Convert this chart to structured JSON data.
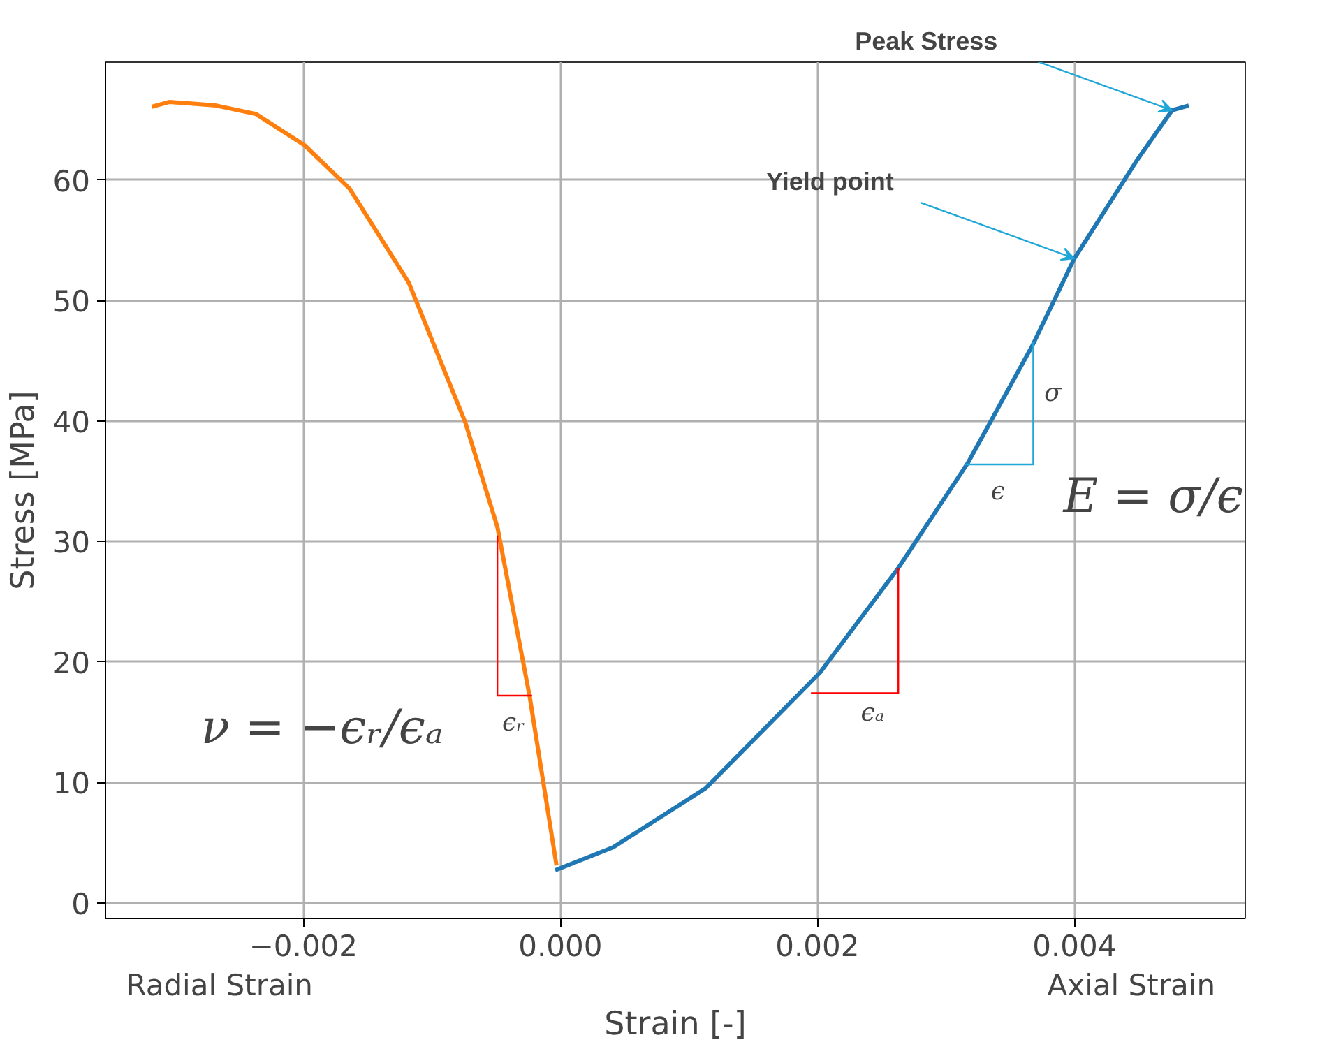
{
  "chart_data": {
    "type": "line",
    "xlabel": "Strain [-]",
    "ylabel": "Stress [MPa]",
    "xlim": [
      -0.00354,
      0.00533
    ],
    "ylim": [
      -1.3,
      69.8
    ],
    "xticks": [
      {
        "value": -0.002,
        "label": "−0.002"
      },
      {
        "value": 0,
        "label": "0.000"
      },
      {
        "value": 0.002,
        "label": "0.002"
      },
      {
        "value": 0.004,
        "label": "0.004"
      }
    ],
    "yticks": [
      0,
      10,
      20,
      30,
      40,
      50,
      60
    ],
    "grid": true,
    "marker": "none",
    "line_style": "solid",
    "series": [
      {
        "color": "#ff7f0e",
        "x": [
          -0.00318,
          -0.00304,
          -0.00268,
          -0.00237,
          -0.00199,
          -0.00164,
          -0.00118,
          -0.00074,
          -0.00049,
          -0.00024,
          -3e-05
        ],
        "values": [
          66.1,
          66.5,
          66.2,
          65.5,
          62.9,
          59.3,
          51.5,
          39.9,
          31.2,
          17.2,
          3.1
        ]
      },
      {
        "color": "#1f77b4",
        "x": [
          -4e-05,
          0.00041,
          0.00113,
          0.00202,
          0.00263,
          0.00317,
          0.00367,
          0.004,
          0.00449,
          0.00476,
          0.00489
        ],
        "values": [
          2.7,
          4.6,
          9.5,
          19.1,
          27.8,
          36.5,
          46.2,
          53.5,
          61.7,
          65.8,
          66.2
        ]
      },
      {
        "color": "#ff0000",
        "x": [
          -0.00049,
          -0.00049,
          -0.00022
        ],
        "values": [
          30.5,
          17.2,
          17.2
        ]
      },
      {
        "color": "#ff0000",
        "x": [
          0.00195,
          0.00263,
          0.00263
        ],
        "values": [
          17.4,
          17.4,
          27.8
        ]
      },
      {
        "color": "#1fa7d8",
        "x": [
          0.00315,
          0.00368,
          0.00368
        ],
        "values": [
          36.4,
          36.4,
          46.6
        ]
      }
    ],
    "annotations": [
      {
        "text": "Peak Stress",
        "x": 0.00476,
        "y": 65.8
      },
      {
        "text": "Yield point",
        "x": 0.004,
        "y": 53.5
      },
      "ϵᵣ",
      "ϵₐ",
      "σ",
      "ϵ",
      "ν = −ϵᵣ/ϵₐ",
      "E = σ/ϵ",
      "Radial Strain",
      "Axial Strain"
    ]
  }
}
